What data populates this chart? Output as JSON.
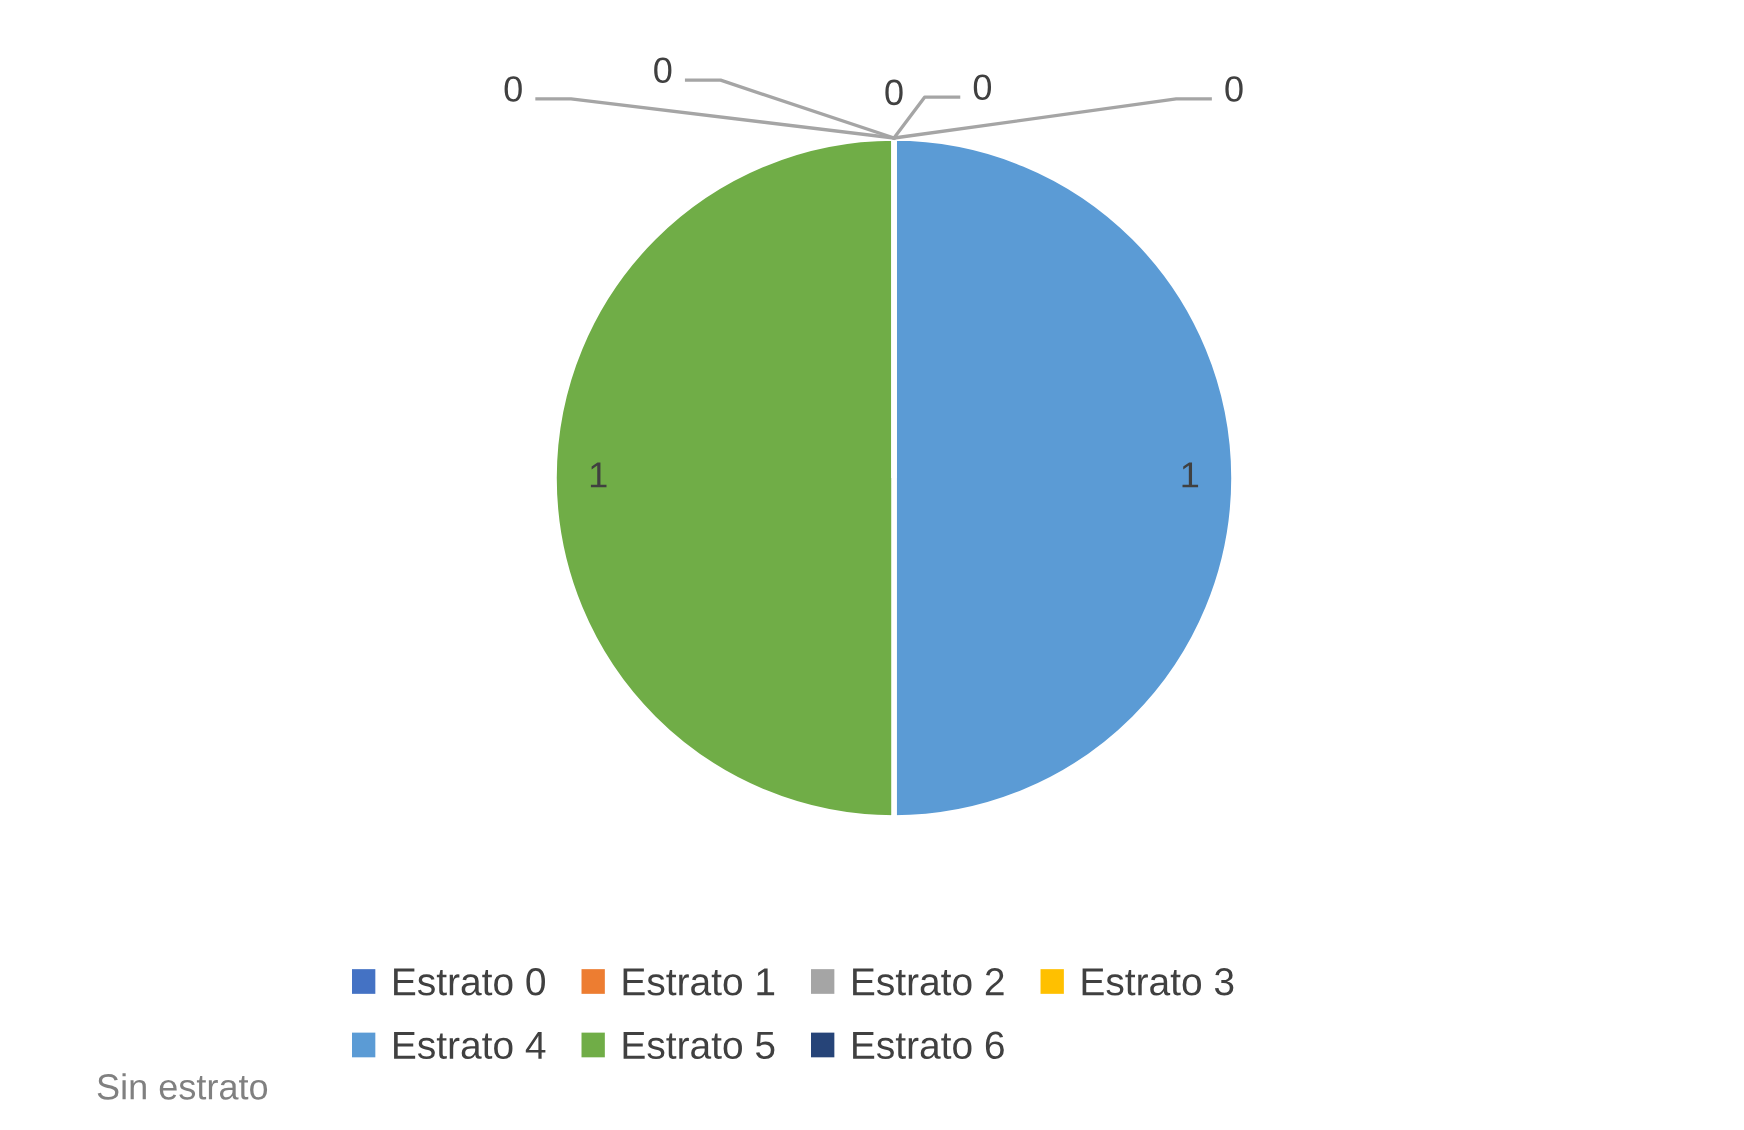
{
  "chart_data": {
    "type": "pie",
    "categories": [
      "Estrato 0",
      "Estrato 1",
      "Estrato 2",
      "Estrato 3",
      "Estrato 4",
      "Estrato 5",
      "Estrato 6"
    ],
    "values": [
      0,
      0,
      0,
      0,
      1,
      1,
      0
    ],
    "colors": [
      "#4472c4",
      "#ed7d31",
      "#a5a5a5",
      "#ffc000",
      "#5b9bd5",
      "#70ad47",
      "#264478"
    ],
    "value_labels": [
      "0",
      "0",
      "0",
      "0",
      "1",
      "1",
      "0"
    ],
    "legend": "bottom",
    "annotations": [
      "Sin estrato"
    ]
  }
}
